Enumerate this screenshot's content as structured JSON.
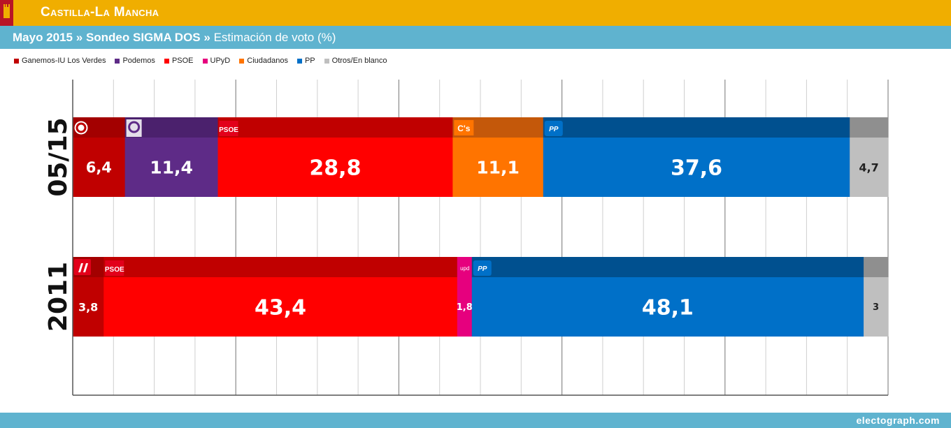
{
  "header": {
    "region": "Castilla-La Mancha",
    "date_label": "Mayo 2015",
    "separator": "»",
    "pollster": "Sondeo SIGMA DOS",
    "measure": "Estimación de voto (%)"
  },
  "colors": {
    "header_bg": "#f0ae00",
    "subheader_bg": "#5fb3cf",
    "grid": "#cfcfcf"
  },
  "legend": [
    {
      "label": "Ganemos-IU Los Verdes",
      "color": "#c00000"
    },
    {
      "label": "Podemos",
      "color": "#5e2b87"
    },
    {
      "label": "PSOE",
      "color": "#ff0000"
    },
    {
      "label": "UPyD",
      "color": "#e6007e"
    },
    {
      "label": "Ciudadanos",
      "color": "#ff7400"
    },
    {
      "label": "PP",
      "color": "#0070c8"
    },
    {
      "label": "Otros/En blanco",
      "color": "#bfbfbf"
    }
  ],
  "chart_data": {
    "type": "bar",
    "orientation": "horizontal-stacked",
    "unit": "%",
    "xlim": [
      0,
      100
    ],
    "grid": true,
    "rows": [
      {
        "label": "05/15",
        "segments": [
          {
            "party": "Ganemos-IU Los Verdes",
            "value": 6.4,
            "display": "6,4",
            "color": "#c00000",
            "band": "#a30000",
            "logo": "G"
          },
          {
            "party": "Podemos",
            "value": 11.4,
            "display": "11,4",
            "color": "#5e2b87",
            "band": "#4b216d",
            "logo": "podemos"
          },
          {
            "party": "PSOE",
            "value": 28.8,
            "display": "28,8",
            "color": "#ff0000",
            "band": "#c00000",
            "logo": "PSOE"
          },
          {
            "party": "Ciudadanos",
            "value": 11.1,
            "display": "11,1",
            "color": "#ff7400",
            "band": "#c4580a",
            "logo": "C's"
          },
          {
            "party": "PP",
            "value": 37.6,
            "display": "37,6",
            "color": "#0070c8",
            "band": "#00508f",
            "logo": "PP"
          },
          {
            "party": "Otros/En blanco",
            "value": 4.7,
            "display": "4,7",
            "color": "#bfbfbf",
            "band": "#8f8f8f",
            "logo": ""
          }
        ]
      },
      {
        "label": "2011",
        "segments": [
          {
            "party": "Ganemos-IU Los Verdes",
            "value": 3.8,
            "display": "3,8",
            "color": "#c00000",
            "band": "#a30000",
            "logo": "iu"
          },
          {
            "party": "PSOE",
            "value": 43.4,
            "display": "43,4",
            "color": "#ff0000",
            "band": "#c00000",
            "logo": "PSOE"
          },
          {
            "party": "UPyD",
            "value": 1.8,
            "display": "1,8",
            "color": "#e6007e",
            "band": "#e6007e",
            "logo": "upd"
          },
          {
            "party": "PP",
            "value": 48.1,
            "display": "48,1",
            "color": "#0070c8",
            "band": "#00508f",
            "logo": "PP"
          },
          {
            "party": "Otros/En blanco",
            "value": 3,
            "display": "3",
            "color": "#bfbfbf",
            "band": "#8f8f8f",
            "logo": ""
          }
        ]
      }
    ]
  },
  "footer": {
    "credit": "electograph.com"
  }
}
